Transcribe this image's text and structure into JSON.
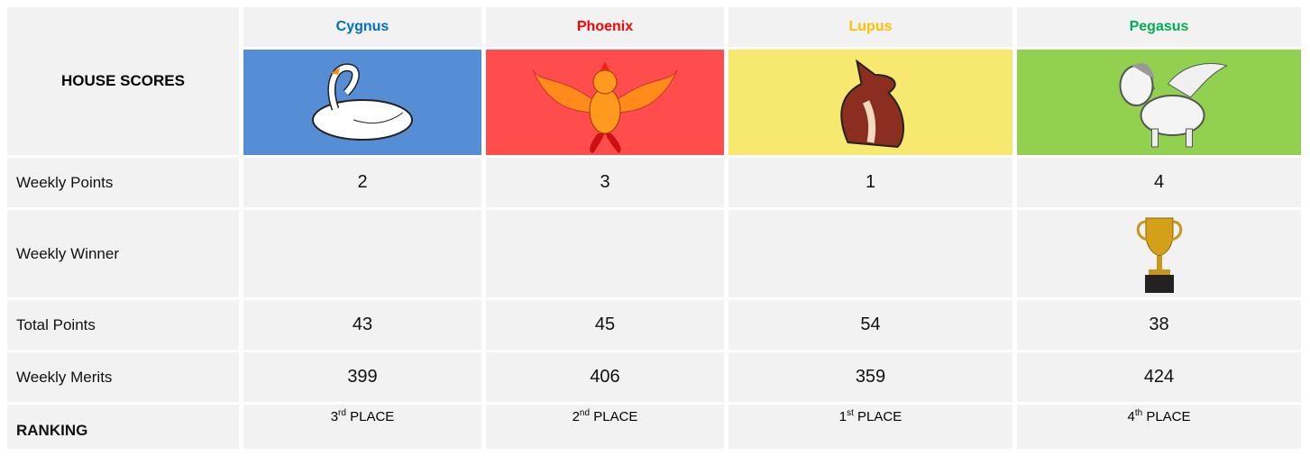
{
  "table": {
    "title": "HOUSE SCORES",
    "houses": [
      {
        "name": "Cygnus",
        "color": "#0070c0",
        "background": "#558ed5"
      },
      {
        "name": "Phoenix",
        "color": "#ff0000",
        "background": "#ff4d4d"
      },
      {
        "name": "Lupus",
        "color": "#ffc000",
        "background": "#f7e86f"
      },
      {
        "name": "Pegasus",
        "color": "#00b050",
        "background": "#92d050"
      }
    ],
    "rows": [
      {
        "label": "Weekly Points",
        "values": [
          2,
          3,
          1,
          4
        ]
      },
      {
        "label": "Weekly Winner",
        "winner": [
          false,
          false,
          false,
          true
        ]
      },
      {
        "label": "Total Points",
        "values": [
          43,
          45,
          54,
          38
        ]
      },
      {
        "label": "Weekly Merits",
        "values": [
          399,
          406,
          359,
          424
        ]
      }
    ],
    "ranking": {
      "label": "RANKING",
      "places": [
        {
          "number": "3",
          "suffix": "rd",
          "text": "PLACE"
        },
        {
          "number": "2",
          "suffix": "nd",
          "text": "PLACE"
        },
        {
          "number": "1",
          "suffix": "st",
          "text": "PLACE"
        },
        {
          "number": "4",
          "suffix": "th",
          "text": "PLACE"
        }
      ]
    }
  }
}
